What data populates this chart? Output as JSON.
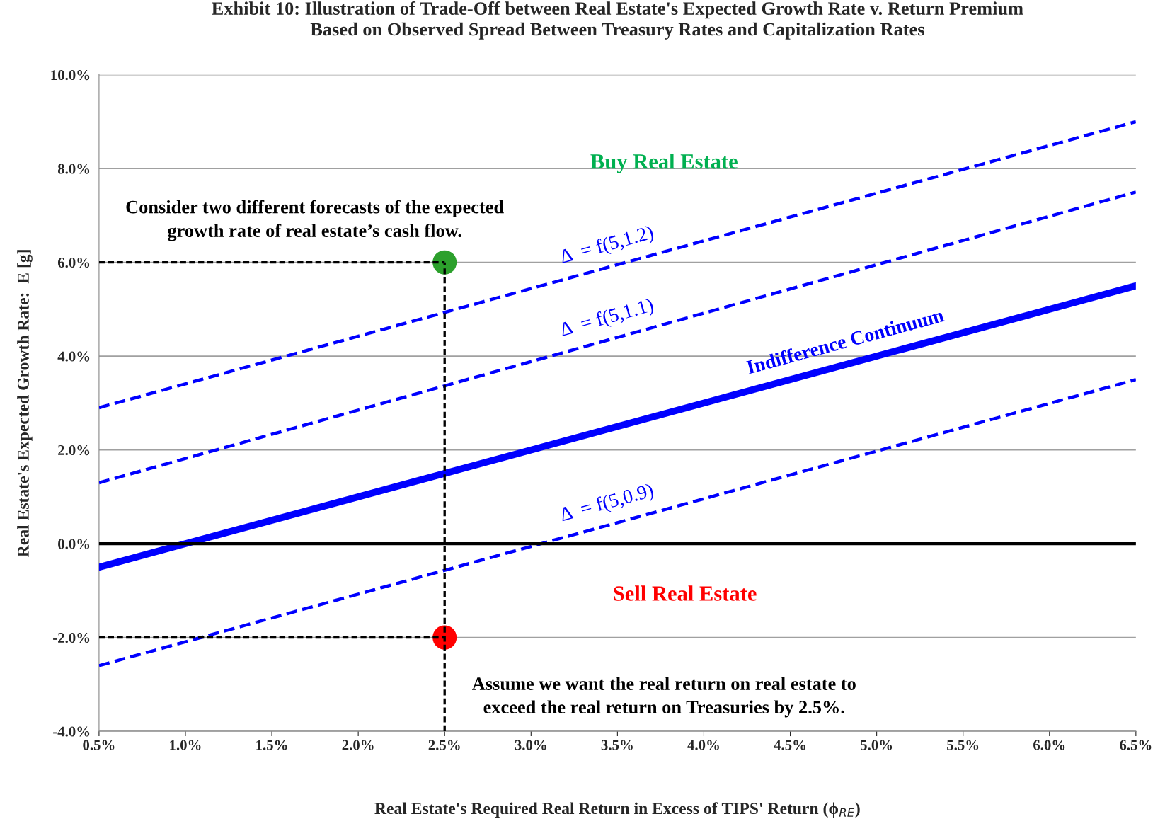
{
  "chart_data": {
    "type": "line",
    "title": "Exhibit 10: Illustration of Trade-Off between Real Estate's Expected Growth Rate v. Return Premium\nBased on Observed Spread Between Treasury Rates and Capitalization Rates",
    "xlabel": "Real Estate's Required Real Return in Excess of TIPS' Return (ϕ$_{RE}$)",
    "ylabel": "Real Estate's Expected Growth Rate:  E [g]",
    "xlim": [
      0.5,
      6.5
    ],
    "xticks": [
      {
        "value": 0.5,
        "label": "0.5%"
      },
      {
        "value": 1.0,
        "label": "1.0%"
      },
      {
        "value": 1.5,
        "label": "1.5%"
      },
      {
        "value": 2.0,
        "label": "2.0%"
      },
      {
        "value": 2.5,
        "label": "2.5%"
      },
      {
        "value": 3.0,
        "label": "3.0%"
      },
      {
        "value": 3.5,
        "label": "3.5%"
      },
      {
        "value": 4.0,
        "label": "4.0%"
      },
      {
        "value": 4.5,
        "label": "4.5%"
      },
      {
        "value": 5.0,
        "label": "5.0%"
      },
      {
        "value": 5.5,
        "label": "5.5%"
      },
      {
        "value": 6.0,
        "label": "6.0%"
      },
      {
        "value": 6.5,
        "label": "6.5%"
      }
    ],
    "ylim": [
      -4,
      10
    ],
    "yticks": [
      {
        "value": -4,
        "label": "-4.0%"
      },
      {
        "value": -2,
        "label": "-2.0%"
      },
      {
        "value": 0,
        "label": "0.0%"
      },
      {
        "value": 2,
        "label": "2.0%"
      },
      {
        "value": 4,
        "label": "4.0%"
      },
      {
        "value": 6,
        "label": "6.0%"
      },
      {
        "value": 8,
        "label": "8.0%"
      },
      {
        "value": 10,
        "label": "10.0%"
      }
    ],
    "grid": "y",
    "series": [
      {
        "name": "Δ  = f(5,1.2)",
        "color": "#0000ff",
        "line_style": "dashed",
        "x": [
          0.5,
          6.5
        ],
        "values": [
          2.9,
          9.0
        ]
      },
      {
        "name": "Δ  = f(5,1.1)",
        "color": "#0000ff",
        "line_style": "dashed",
        "x": [
          0.5,
          6.5
        ],
        "values": [
          1.3,
          7.5
        ]
      },
      {
        "name": "Indifference Continuum",
        "color": "#0000ff",
        "line_style": "solid",
        "x": [
          0.5,
          6.5
        ],
        "values": [
          -0.5,
          5.5
        ]
      },
      {
        "name": "Δ  = f(5,0.9)",
        "color": "#0000ff",
        "line_style": "dashed",
        "x": [
          0.5,
          6.5
        ],
        "values": [
          -2.6,
          3.5
        ]
      },
      {
        "color": "#000000",
        "line_style": "dashed",
        "x": [
          0.5,
          2.5
        ],
        "values": [
          6,
          6
        ]
      },
      {
        "color": "#000000",
        "line_style": "dashed",
        "x": [
          0.5,
          2.5
        ],
        "values": [
          -2,
          -2
        ]
      },
      {
        "color": "#000000",
        "line_style": "dashed",
        "x": [
          2.5,
          2.5
        ],
        "values": [
          -4,
          6
        ]
      },
      {
        "type": "scatter",
        "marker": "circle",
        "x": [
          2.5,
          2.5
        ],
        "values": [
          6,
          -2
        ],
        "colors": [
          "#2ca02c",
          "#ff0000"
        ]
      }
    ],
    "ref_lines": [
      {
        "axis": "y",
        "value": 0,
        "color": "#000000"
      }
    ],
    "annotations": [
      "Buy Real Estate",
      "Sell Real Estate",
      "Consider two different forecasts of the expected\ngrowth rate of real estate’s cash flow.",
      "Assume we want the real return on real estate to\nexceed the real return on Treasuries by 2.5%."
    ]
  }
}
